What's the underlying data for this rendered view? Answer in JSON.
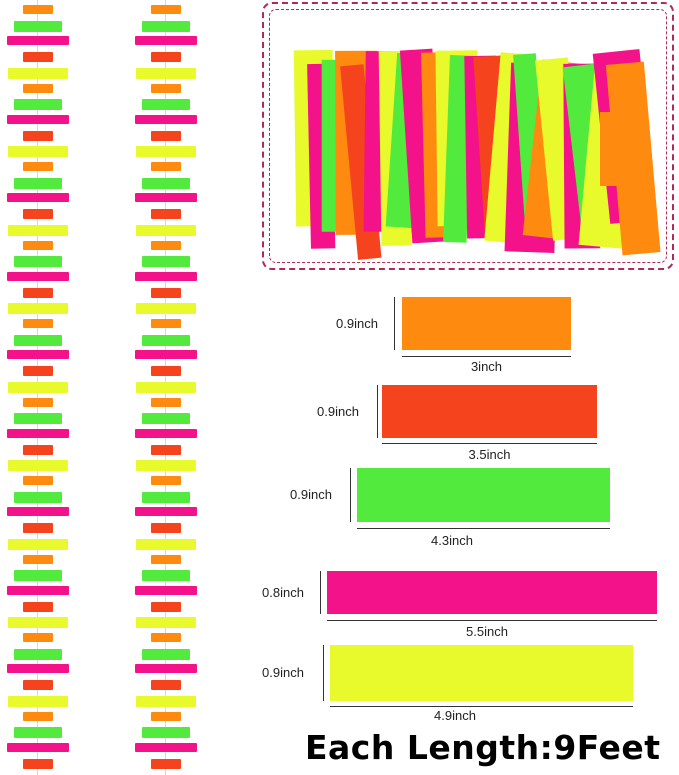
{
  "colors": {
    "orange": "#ff8a10",
    "red": "#f5431e",
    "green": "#52ea3c",
    "pink": "#f3128a",
    "yellow": "#e8fa2c",
    "frame": "#b12a55"
  },
  "swatches": [
    {
      "color": "orange",
      "height_label": "0.9inch",
      "width_label": "3inch"
    },
    {
      "color": "red",
      "height_label": "0.9inch",
      "width_label": "3.5inch"
    },
    {
      "color": "green",
      "height_label": "0.9inch",
      "width_label": "4.3inch"
    },
    {
      "color": "pink",
      "height_label": "0.8inch",
      "width_label": "5.5inch"
    },
    {
      "color": "yellow",
      "height_label": "0.9inch",
      "width_label": "4.9inch"
    }
  ],
  "footer": {
    "text": "Each Length:9Feet"
  }
}
